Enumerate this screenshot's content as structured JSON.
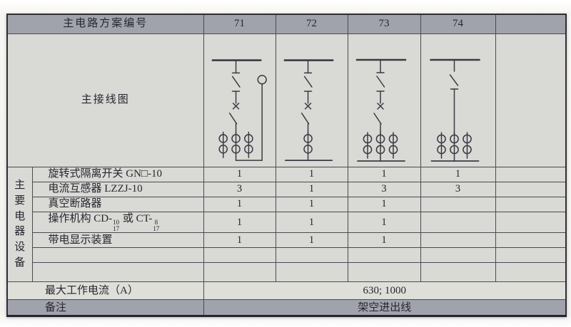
{
  "header": {
    "label": "主电路方案编号",
    "schemes": [
      "71",
      "72",
      "73",
      "74",
      ""
    ]
  },
  "diagram_label": "主接线图",
  "section_label": "主要电器设备",
  "equipment_rows": [
    {
      "name": "旋转式隔离开关 GN□-10",
      "values": [
        "1",
        "1",
        "1",
        "1",
        ""
      ]
    },
    {
      "name": "电流互感器 LZZJ-10",
      "values": [
        "3",
        "1",
        "3",
        "3",
        ""
      ]
    },
    {
      "name": "真空断路器",
      "values": [
        "1",
        "1",
        "1",
        "",
        ""
      ]
    },
    {
      "name_rich": [
        {
          "t": "操作机构 CD-"
        },
        {
          "f": [
            "10",
            "17"
          ]
        },
        {
          "t": " 或 CT-"
        },
        {
          "f": [
            "8",
            "17"
          ]
        }
      ],
      "values": [
        "1",
        "1",
        "1",
        "",
        ""
      ]
    },
    {
      "name": "带电显示装置",
      "values": [
        "1",
        "1",
        "1",
        "",
        ""
      ]
    },
    {
      "name": "",
      "values": [
        "",
        "",
        "",
        "",
        ""
      ]
    },
    {
      "name": "",
      "values": [
        "",
        "",
        "",
        "",
        ""
      ]
    }
  ],
  "footer_rows": [
    {
      "label": "最大工作电流（A）",
      "value": "630; 1000",
      "dark": false
    },
    {
      "label": "备注",
      "value": "架空进出线",
      "dark": true
    }
  ],
  "diagrams": [
    {
      "scheme": "71",
      "head": "breaker",
      "ct_count": 3,
      "right_indicator": true,
      "bottom_bar": false
    },
    {
      "scheme": "72",
      "head": "breaker",
      "ct_count": 1,
      "right_indicator": false,
      "bottom_bar": true
    },
    {
      "scheme": "73",
      "head": "breaker",
      "ct_count": 3,
      "right_indicator": false,
      "bottom_bar": true
    },
    {
      "scheme": "74",
      "head": "plain",
      "ct_count": 3,
      "right_indicator": false,
      "bottom_bar": true
    },
    {
      "scheme": "",
      "empty": true
    }
  ],
  "colors": {
    "header_bg": "#a0a2ac",
    "body_bg": "#d9d9d5",
    "footer_light_bg": "#dfdfda",
    "line": "#4a4a54",
    "diagram_stroke": "#3a3a44",
    "text": "#26262e"
  }
}
